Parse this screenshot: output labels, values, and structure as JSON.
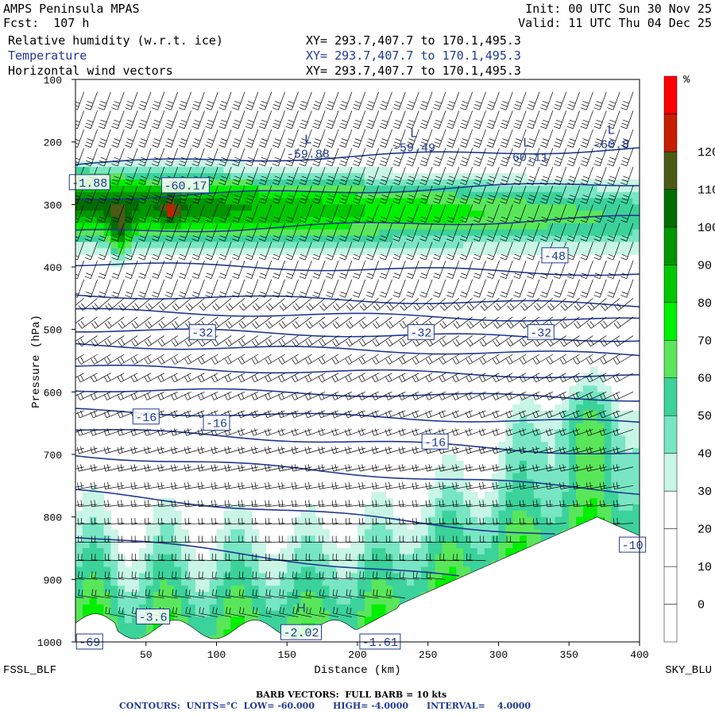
{
  "header": {
    "title": "AMPS Peninsula MPAS",
    "forecast": "Fcst:  107 h",
    "init": "Init: 00 UTC Sun 30 Nov 25",
    "valid": "Valid: 11 UTC Thu 04 Dec 25",
    "fields": [
      {
        "label": "Relative humidity (w.r.t. ice)",
        "xy": "XY= 293.7,407.7 to 170.1,495.3"
      },
      {
        "label": "Temperature",
        "xy": "XY= 293.7,407.7 to 170.1,495.3"
      },
      {
        "label": "Horizontal wind vectors",
        "xy": "XY= 293.7,407.7 to 170.1,495.3"
      }
    ]
  },
  "colors": {
    "temperature_contour": "#1f3a93",
    "rh_scale": [
      "#ffffff",
      "#ffffff",
      "#ffffff",
      "#ffffff",
      "#c8f5e6",
      "#78e6c3",
      "#3cd29b",
      "#5ae65a",
      "#00f000",
      "#00c800",
      "#009600",
      "#006e00",
      "#4b5a14",
      "#c81e00",
      "#ff0000"
    ]
  },
  "chart_data": {
    "type": "heatmap",
    "description_fields": [
      "relative humidity fill",
      "temperature contours",
      "wind barbs"
    ],
    "xlabel": "Distance (km)",
    "ylabel": "Pressure (hPa)",
    "xlim": [
      0,
      400
    ],
    "ylim": [
      100,
      1000
    ],
    "x_ticks": [
      50,
      100,
      150,
      200,
      250,
      300,
      350,
      400
    ],
    "y_ticks": [
      100,
      200,
      300,
      400,
      500,
      600,
      700,
      800,
      900,
      1000
    ],
    "left_endpoint": "FSSL_BLF",
    "right_endpoint": "SKY_BLU",
    "colorbar": {
      "unit": "%",
      "ticks": [
        0,
        10,
        20,
        30,
        40,
        50,
        60,
        70,
        80,
        90,
        100,
        110,
        120
      ],
      "levels": [
        -10,
        0,
        10,
        20,
        30,
        40,
        50,
        60,
        70,
        80,
        90,
        100,
        110,
        120,
        130
      ]
    },
    "temperature_contours": {
      "units": "°C",
      "low": -60,
      "high": -4,
      "interval": 4,
      "labels": [
        {
          "text": "-32",
          "x": 90,
          "p": 505
        },
        {
          "text": "-32",
          "x": 245,
          "p": 505
        },
        {
          "text": "-32",
          "x": 330,
          "p": 505
        },
        {
          "text": "-48",
          "x": 340,
          "p": 382
        },
        {
          "text": "-16",
          "x": 50,
          "p": 640
        },
        {
          "text": "-16",
          "x": 100,
          "p": 650
        },
        {
          "text": "-16",
          "x": 255,
          "p": 680
        },
        {
          "text": "-10",
          "x": 395,
          "p": 845
        },
        {
          "text": "-1.88",
          "x": 10,
          "p": 265
        },
        {
          "text": "-60.17",
          "x": 78,
          "p": 270
        },
        {
          "text": "-3.6",
          "x": 55,
          "p": 960
        },
        {
          "text": "-2.02",
          "x": 160,
          "p": 985
        },
        {
          "text": "-1.61",
          "x": 216,
          "p": 1000
        },
        {
          "text": "-69",
          "x": 10,
          "p": 1000
        }
      ],
      "extrema": [
        {
          "kind": "L",
          "value": "-59.88",
          "x": 165,
          "p": 210
        },
        {
          "kind": "L",
          "value": "-59.49",
          "x": 240,
          "p": 200
        },
        {
          "kind": "L",
          "value": "-60.11",
          "x": 320,
          "p": 215
        },
        {
          "kind": "L",
          "value": "-60.8",
          "x": 380,
          "p": 195
        },
        {
          "kind": "H",
          "value": "",
          "x": 160,
          "p": 960
        }
      ]
    }
  },
  "footer": {
    "barb_note": "BARB VECTORS:  FULL BARB = 10 kts",
    "contours": "CONTOURS:  UNITS=°C  LOW= -60.000      HIGH= -4.0000      INTERVAL=    4.0000"
  }
}
